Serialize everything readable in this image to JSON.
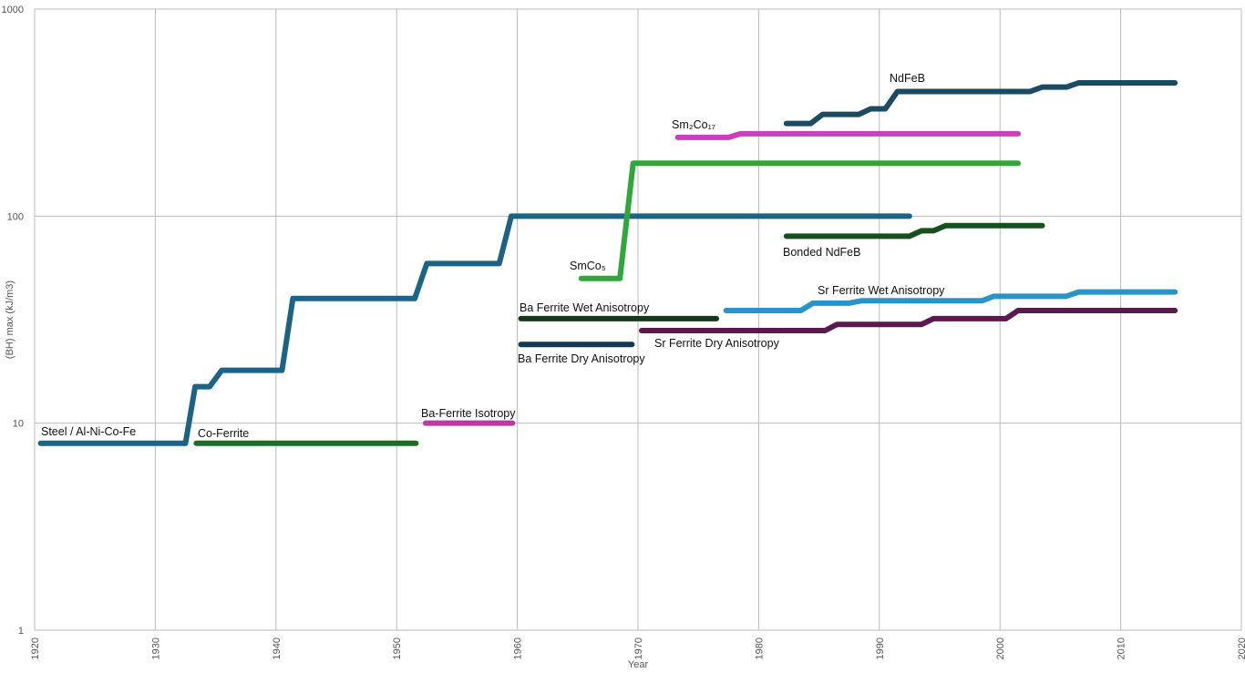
{
  "chart_data": {
    "type": "line",
    "x_label": "Year",
    "y_label": "(BH) max (kJ/m3)",
    "log_y": true,
    "grid": true,
    "xlim": [
      1920,
      2020
    ],
    "xticks": [
      1920,
      1930,
      1940,
      1950,
      1960,
      1970,
      1980,
      1990,
      2000,
      2010,
      2020
    ],
    "ylim": [
      1,
      1000
    ],
    "yticks": [
      1,
      10,
      100,
      1000
    ],
    "series": [
      {
        "name": "Steel / Al-Ni-Co-Fe",
        "color": "#1c6486",
        "x": [
          1920.5,
          1932.5,
          1933.3,
          1934.5,
          1935.5,
          1940.5,
          1941.4,
          1951.5,
          1952.5,
          1958.5,
          1959.5,
          1992.5
        ],
        "values": [
          8,
          8,
          15,
          15,
          18,
          18,
          40,
          40,
          59,
          59,
          100,
          100
        ]
      },
      {
        "name": "Co-Ferrite",
        "color": "#1e6b2a",
        "x": [
          1933.4,
          1951.6
        ],
        "values": [
          8,
          8
        ]
      },
      {
        "name": "Ba-Ferrite Isotropy",
        "color": "#b83aa8",
        "x": [
          1952.4,
          1959.6
        ],
        "values": [
          10,
          10
        ]
      },
      {
        "name": "SmCo₅",
        "color": "#2ea83a",
        "x": [
          1965.3,
          1968.5,
          1969.6,
          2001.5
        ],
        "values": [
          50,
          50,
          180,
          180
        ]
      },
      {
        "name": "Sm₂Co₁₇",
        "color": "#c940b8",
        "x": [
          1973.3,
          1977.5,
          1978.5,
          2001.5
        ],
        "values": [
          240,
          240,
          250,
          250
        ]
      },
      {
        "name": "NdFeB",
        "color": "#1b4a63",
        "x": [
          1982.3,
          1984.3,
          1985.3,
          1988.3,
          1989.3,
          1990.5,
          1991.5,
          2002.5,
          2003.5,
          2005.5,
          2006.5,
          2014.5
        ],
        "values": [
          280,
          280,
          310,
          310,
          330,
          330,
          400,
          400,
          420,
          420,
          440,
          440
        ]
      },
      {
        "name": "Bonded NdFeB",
        "color": "#16501e",
        "x": [
          1982.3,
          1992.5,
          1993.5,
          1994.5,
          1995.5,
          2003.5
        ],
        "values": [
          80,
          80,
          85,
          85,
          90,
          90
        ]
      },
      {
        "name": "Ba Ferrite Wet Anisotropy",
        "color": "#163a18",
        "x": [
          1960.3,
          1976.5
        ],
        "values": [
          32,
          32
        ]
      },
      {
        "name": "Ba Ferrite Dry Anisotropy",
        "color": "#143a50",
        "x": [
          1960.3,
          1969.5
        ],
        "values": [
          24,
          24
        ]
      },
      {
        "name": "Sr Ferrite Wet Anisotropy",
        "color": "#2a93c8",
        "x": [
          1977.3,
          1983.5,
          1984.5,
          1987.5,
          1988.5,
          1998.5,
          1999.5,
          2005.5,
          2006.5,
          2014.5
        ],
        "values": [
          35,
          35,
          38,
          38,
          39,
          39,
          41,
          41,
          43,
          43
        ]
      },
      {
        "name": "Sr Ferrite Dry Anisotropy",
        "color": "#5a1a4f",
        "x": [
          1970.3,
          1985.5,
          1986.5,
          1993.5,
          1994.5,
          2000.5,
          2001.5,
          2014.5
        ],
        "values": [
          28,
          28,
          30,
          30,
          32,
          32,
          35,
          35
        ]
      }
    ]
  }
}
